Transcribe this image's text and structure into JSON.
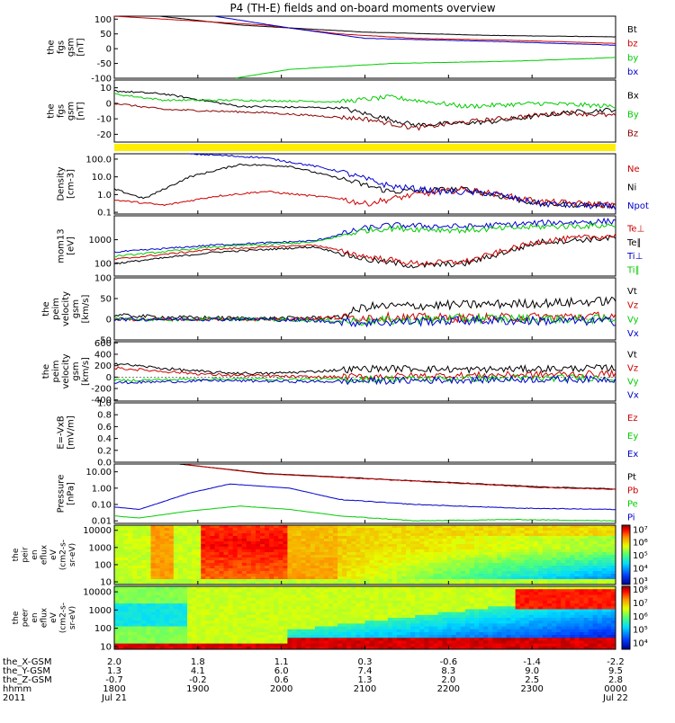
{
  "title": "P4 (TH-E) fields and on-board moments overview",
  "chart_data": [
    {
      "type": "line",
      "id": "fgs_gsm",
      "ylabel": [
        "the",
        "fgs",
        "gsm",
        "[nT]"
      ],
      "yticks": [
        "100",
        "50",
        "0",
        "-50",
        "-100"
      ],
      "tick_values": [
        100,
        50,
        0,
        -50,
        -100
      ],
      "ylim": [
        -100,
        110
      ],
      "legend": [
        {
          "label": "Bt",
          "color": "#000000"
        },
        {
          "label": "bz",
          "color": "#cc0000"
        },
        {
          "label": "by",
          "color": "#00cc00"
        },
        {
          "label": "bx",
          "color": "#0000cc"
        }
      ],
      "series": [
        {
          "name": "Bt",
          "color": "#000000",
          "x": [
            0.09,
            0.25,
            0.5,
            0.75,
            1.0
          ],
          "y": [
            110,
            80,
            56,
            45,
            40
          ]
        },
        {
          "name": "bz",
          "color": "#cc0000",
          "x": [
            0.0,
            0.3,
            0.45,
            0.6,
            0.8,
            1.0
          ],
          "y": [
            110,
            80,
            50,
            35,
            28,
            18
          ]
        },
        {
          "name": "bx",
          "color": "#0000cc",
          "x": [
            0.2,
            0.35,
            0.5,
            0.75,
            1.0
          ],
          "y": [
            110,
            70,
            35,
            25,
            12
          ]
        },
        {
          "name": "by",
          "color": "#00cc00",
          "x": [
            0.24,
            0.35,
            0.55,
            0.8,
            1.0
          ],
          "y": [
            -100,
            -70,
            -50,
            -42,
            -30
          ]
        }
      ]
    },
    {
      "type": "line",
      "id": "fgs_gse_detrend",
      "ylabel": [
        "the",
        "fgs",
        "gsm",
        "[nT]"
      ],
      "yticks": [
        "10",
        "0",
        "-10",
        "-20"
      ],
      "tick_values": [
        10,
        0,
        -10,
        -20
      ],
      "ylim": [
        -25,
        15
      ],
      "legend": [
        {
          "label": "Bx",
          "color": "#000000"
        },
        {
          "label": "By",
          "color": "#00cc00"
        },
        {
          "label": "Bz",
          "color": "#8b0000"
        }
      ],
      "series": [
        {
          "name": "Bx",
          "color": "#000000",
          "x": [
            0.0,
            0.1,
            0.25,
            0.45,
            0.6,
            0.75,
            0.9,
            1.0
          ],
          "y": [
            8,
            6,
            -2,
            -3,
            -14,
            -12,
            -6,
            -4
          ]
        },
        {
          "name": "By",
          "color": "#00cc00",
          "x": [
            0.0,
            0.1,
            0.25,
            0.45,
            0.55,
            0.7,
            0.85,
            1.0
          ],
          "y": [
            6,
            2,
            2,
            1,
            4,
            -2,
            0,
            -2
          ]
        },
        {
          "name": "Bz",
          "color": "#8b0000",
          "x": [
            0.0,
            0.1,
            0.3,
            0.5,
            0.6,
            0.7,
            0.9,
            1.0
          ],
          "y": [
            0,
            -4,
            -6,
            -10,
            -16,
            -12,
            -6,
            -8
          ]
        }
      ]
    },
    {
      "type": "line",
      "id": "density",
      "ylabel": [
        "Density",
        "[cm-3]"
      ],
      "yticks": [
        "100.0",
        "10.0",
        "1.0",
        "0.1"
      ],
      "tick_values": [
        100,
        10,
        1,
        0.1
      ],
      "log": true,
      "ylim": [
        0.08,
        200
      ],
      "legend": [
        {
          "label": "Ne",
          "color": "#cc0000"
        },
        {
          "label": "Ni",
          "color": "#000000"
        },
        {
          "label": "Npot",
          "color": "#0000cc"
        }
      ],
      "series": [
        {
          "name": "Ni",
          "color": "#000000",
          "x": [
            0.0,
            0.06,
            0.15,
            0.25,
            0.35,
            0.45,
            0.55,
            0.7,
            0.85,
            1.0
          ],
          "y": [
            2,
            0.6,
            10,
            50,
            40,
            8,
            1.5,
            2,
            0.3,
            0.25
          ]
        },
        {
          "name": "Ne",
          "color": "#cc0000",
          "x": [
            0.0,
            0.1,
            0.2,
            0.3,
            0.45,
            0.5,
            0.6,
            0.7,
            0.85,
            1.0
          ],
          "y": [
            0.5,
            0.25,
            0.8,
            1.5,
            0.6,
            0.3,
            1.0,
            2.0,
            0.4,
            0.25
          ]
        },
        {
          "name": "Npot",
          "color": "#0000cc",
          "x": [
            0.15,
            0.3,
            0.4,
            0.45,
            0.55,
            0.65,
            0.75,
            0.85,
            1.0
          ],
          "y": [
            200,
            120,
            40,
            20,
            3,
            1.5,
            1.2,
            0.3,
            0.2
          ]
        }
      ]
    },
    {
      "type": "line",
      "id": "temperature",
      "ylabel": [
        "mom13",
        "[eV]"
      ],
      "yticks": [
        "1000",
        "100"
      ],
      "tick_values": [
        1000,
        100
      ],
      "log": true,
      "ylim": [
        30,
        10000
      ],
      "legend": [
        {
          "label": "Te⊥",
          "color": "#cc0000"
        },
        {
          "label": "Te∥",
          "color": "#000000"
        },
        {
          "label": "Ti⊥",
          "color": "#0000cc"
        },
        {
          "label": "Ti∥",
          "color": "#00cc00"
        }
      ],
      "series": [
        {
          "name": "Ti⊥",
          "color": "#0000cc",
          "x": [
            0.0,
            0.2,
            0.4,
            0.5,
            0.55,
            0.7,
            0.85,
            1.0
          ],
          "y": [
            300,
            600,
            900,
            3000,
            4000,
            3500,
            5000,
            6000
          ]
        },
        {
          "name": "Ti∥",
          "color": "#00cc00",
          "x": [
            0.0,
            0.2,
            0.4,
            0.5,
            0.55,
            0.7,
            0.85,
            1.0
          ],
          "y": [
            200,
            500,
            800,
            2500,
            3000,
            2500,
            3500,
            4000
          ]
        },
        {
          "name": "Te∥",
          "color": "#000000",
          "x": [
            0.0,
            0.2,
            0.4,
            0.5,
            0.6,
            0.7,
            0.85,
            1.0
          ],
          "y": [
            100,
            300,
            500,
            150,
            80,
            100,
            800,
            1200
          ]
        },
        {
          "name": "Te⊥",
          "color": "#cc0000",
          "x": [
            0.0,
            0.2,
            0.4,
            0.5,
            0.6,
            0.7,
            0.85,
            1.0
          ],
          "y": [
            150,
            400,
            600,
            200,
            100,
            120,
            900,
            1500
          ]
        }
      ]
    },
    {
      "type": "line",
      "id": "velocity_perp",
      "ylabel": [
        "the",
        "peim",
        "velocity",
        "gsm",
        "[km/s]"
      ],
      "yticks": [
        "100",
        "50",
        "0",
        "-50"
      ],
      "tick_values": [
        100,
        50,
        0,
        -50
      ],
      "ylim": [
        -50,
        100
      ],
      "legend": [
        {
          "label": "Vt",
          "color": "#000000"
        },
        {
          "label": "Vz",
          "color": "#cc0000"
        },
        {
          "label": "Vy",
          "color": "#00cc00"
        },
        {
          "label": "Vx",
          "color": "#0000cc"
        }
      ],
      "series": [
        {
          "name": "Vt",
          "color": "#000000",
          "x": [
            0.0,
            0.1,
            0.3,
            0.45,
            0.5,
            0.7,
            0.9,
            1.0
          ],
          "y": [
            10,
            5,
            2,
            5,
            30,
            35,
            40,
            45
          ]
        },
        {
          "name": "Vz",
          "color": "#cc0000",
          "x": [
            0.0,
            0.3,
            0.5,
            0.7,
            1.0
          ],
          "y": [
            0,
            0,
            5,
            3,
            8
          ]
        },
        {
          "name": "Vy",
          "color": "#00cc00",
          "x": [
            0.0,
            0.3,
            0.5,
            0.7,
            1.0
          ],
          "y": [
            0,
            0,
            -5,
            2,
            0
          ]
        },
        {
          "name": "Vx",
          "color": "#0000cc",
          "x": [
            0.0,
            0.3,
            0.5,
            0.7,
            1.0
          ],
          "y": [
            0,
            0,
            -8,
            -3,
            -5
          ]
        }
      ]
    },
    {
      "type": "line",
      "id": "velocity",
      "ylabel": [
        "the",
        "peim",
        "velocity",
        "gsm",
        "[km/s]"
      ],
      "yticks": [
        "600",
        "400",
        "200",
        "0",
        "-200",
        "-400"
      ],
      "tick_values": [
        600,
        400,
        200,
        0,
        -200,
        -400
      ],
      "ylim": [
        -420,
        620
      ],
      "legend": [
        {
          "label": "Vt",
          "color": "#000000"
        },
        {
          "label": "Vz",
          "color": "#cc0000"
        },
        {
          "label": "Vy",
          "color": "#00cc00"
        },
        {
          "label": "Vx",
          "color": "#0000cc"
        }
      ],
      "series": [
        {
          "name": "Vt",
          "color": "#000000",
          "x": [
            0.0,
            0.1,
            0.2,
            0.3,
            0.4,
            0.5,
            0.6,
            0.7,
            0.8,
            0.9,
            1.0
          ],
          "y": [
            240,
            150,
            80,
            60,
            100,
            150,
            150,
            130,
            140,
            150,
            160
          ]
        },
        {
          "name": "Vz",
          "color": "#cc0000",
          "x": [
            0.0,
            0.2,
            0.4,
            0.6,
            0.8,
            1.0
          ],
          "y": [
            160,
            40,
            0,
            20,
            40,
            60
          ]
        },
        {
          "name": "Vy",
          "color": "#00cc00",
          "x": [
            0.0,
            0.2,
            0.4,
            0.6,
            0.8,
            1.0
          ],
          "y": [
            -60,
            -30,
            -40,
            -30,
            -20,
            -10
          ]
        },
        {
          "name": "Vx",
          "color": "#0000cc",
          "x": [
            0.0,
            0.2,
            0.4,
            0.6,
            0.8,
            1.0
          ],
          "y": [
            -100,
            -60,
            -80,
            -60,
            -40,
            -40
          ]
        }
      ]
    },
    {
      "type": "line",
      "id": "efield",
      "ylabel": [
        "E=-VxB",
        "[mV/m]"
      ],
      "yticks": [
        "1.0",
        "0.8",
        "0.6",
        "0.4",
        "0.2",
        "0.0"
      ],
      "tick_values": [
        1.0,
        0.8,
        0.6,
        0.4,
        0.2,
        0.0
      ],
      "ylim": [
        0,
        1
      ],
      "legend": [
        {
          "label": "Ez",
          "color": "#cc0000"
        },
        {
          "label": "Ey",
          "color": "#00cc00"
        },
        {
          "label": "Ex",
          "color": "#0000cc"
        }
      ],
      "series": []
    },
    {
      "type": "line",
      "id": "pressure",
      "ylabel": [
        "Pressure",
        "[nPa]"
      ],
      "yticks": [
        "10.00",
        "1.00",
        "0.10",
        "0.01"
      ],
      "tick_values": [
        10,
        1,
        0.1,
        0.01
      ],
      "log": true,
      "ylim": [
        0.007,
        30
      ],
      "legend": [
        {
          "label": "Pt",
          "color": "#000000"
        },
        {
          "label": "Pb",
          "color": "#cc0000"
        },
        {
          "label": "Pe",
          "color": "#00cc00"
        },
        {
          "label": "Pi",
          "color": "#0000cc"
        }
      ],
      "series": [
        {
          "name": "Pt",
          "color": "#000000",
          "x": [
            0.13,
            0.3,
            0.5,
            0.7,
            0.85,
            1.0
          ],
          "y": [
            30,
            8,
            4,
            2,
            1.2,
            0.9
          ]
        },
        {
          "name": "Pb",
          "color": "#cc0000",
          "x": [
            0.14,
            0.3,
            0.5,
            0.7,
            0.85,
            1.0
          ],
          "y": [
            28,
            7.5,
            3.8,
            1.9,
            1.1,
            0.85
          ]
        },
        {
          "name": "Pi",
          "color": "#0000cc",
          "x": [
            0.0,
            0.05,
            0.15,
            0.23,
            0.35,
            0.45,
            0.6,
            0.8,
            1.0
          ],
          "y": [
            0.07,
            0.05,
            0.5,
            1.8,
            1.0,
            0.2,
            0.1,
            0.06,
            0.05
          ]
        },
        {
          "name": "Pe",
          "color": "#00cc00",
          "x": [
            0.0,
            0.05,
            0.15,
            0.25,
            0.35,
            0.45,
            0.6,
            0.8,
            1.0
          ],
          "y": [
            0.02,
            0.015,
            0.04,
            0.08,
            0.05,
            0.02,
            0.01,
            0.012,
            0.01
          ]
        }
      ]
    },
    {
      "type": "heatmap",
      "id": "ion_spectrogram",
      "ylabel": [
        "the",
        "peir",
        "en",
        "eflux",
        "eV",
        "(cm2-s-",
        "sr-eV)"
      ],
      "yticks": [
        "10000",
        "1000",
        "100",
        "10"
      ],
      "tick_values": [
        10000,
        1000,
        100,
        10
      ],
      "colorbar_ticks": [
        "10⁷",
        "10⁶",
        "10⁵",
        "10⁴",
        "10³"
      ],
      "colorbar_values": [
        7,
        6,
        5,
        4,
        3
      ],
      "colorbar_range": [
        2.7,
        7.3
      ]
    },
    {
      "type": "heatmap",
      "id": "electron_spectrogram",
      "ylabel": [
        "the",
        "peer",
        "en",
        "eflux",
        "eV",
        "(cm2-s-",
        "sr-eV)"
      ],
      "yticks": [
        "10000",
        "1000",
        "100",
        "10"
      ],
      "tick_values": [
        10000,
        1000,
        100,
        10
      ],
      "colorbar_ticks": [
        "10⁸",
        "10⁷",
        "10⁶",
        "10⁵",
        "10⁴"
      ],
      "colorbar_values": [
        8,
        7,
        6,
        5,
        4
      ],
      "colorbar_range": [
        3.5,
        8.2
      ]
    }
  ],
  "xaxis": {
    "row_labels": [
      "the_X-GSM",
      "the_Y-GSM",
      "the_Z-GSM",
      "hhmm",
      "2011"
    ],
    "columns": [
      {
        "x": 2.0,
        "y": 1.3,
        "z": -0.7,
        "hhmm": "1800",
        "date": "Jul 21"
      },
      {
        "x": 1.8,
        "y": 4.1,
        "z": -0.2,
        "hhmm": "1900",
        "date": ""
      },
      {
        "x": 1.1,
        "y": 6.0,
        "z": 0.6,
        "hhmm": "2000",
        "date": ""
      },
      {
        "x": 0.3,
        "y": 7.4,
        "z": 1.3,
        "hhmm": "2100",
        "date": ""
      },
      {
        "x": -0.6,
        "y": 8.3,
        "z": 2.0,
        "hhmm": "2200",
        "date": ""
      },
      {
        "x": -1.4,
        "y": 9.0,
        "z": 2.5,
        "hhmm": "2300",
        "date": ""
      },
      {
        "x": -2.2,
        "y": 9.5,
        "z": 2.8,
        "hhmm": "0000",
        "date": "Jul 22"
      }
    ]
  },
  "colors": {
    "status_bar": "#ffee00"
  }
}
